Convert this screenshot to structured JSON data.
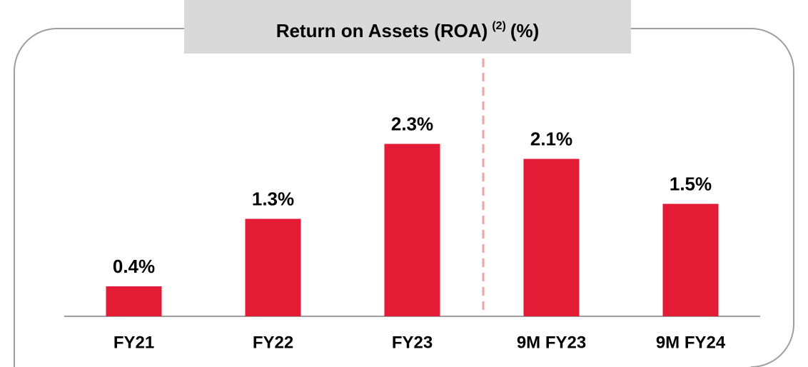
{
  "chart_data": {
    "type": "bar",
    "title": "Return on Assets (ROA)",
    "title_note": "(2)",
    "title_unit": "(%)",
    "categories": [
      "FY21",
      "FY22",
      "FY23",
      "9M FY23",
      "9M FY24"
    ],
    "values": [
      0.4,
      1.3,
      2.3,
      2.1,
      1.5
    ],
    "value_labels": [
      "0.4%",
      "1.3%",
      "2.3%",
      "2.1%",
      "1.5%"
    ],
    "color": "#e31b35",
    "ylim": [
      0,
      3
    ]
  }
}
